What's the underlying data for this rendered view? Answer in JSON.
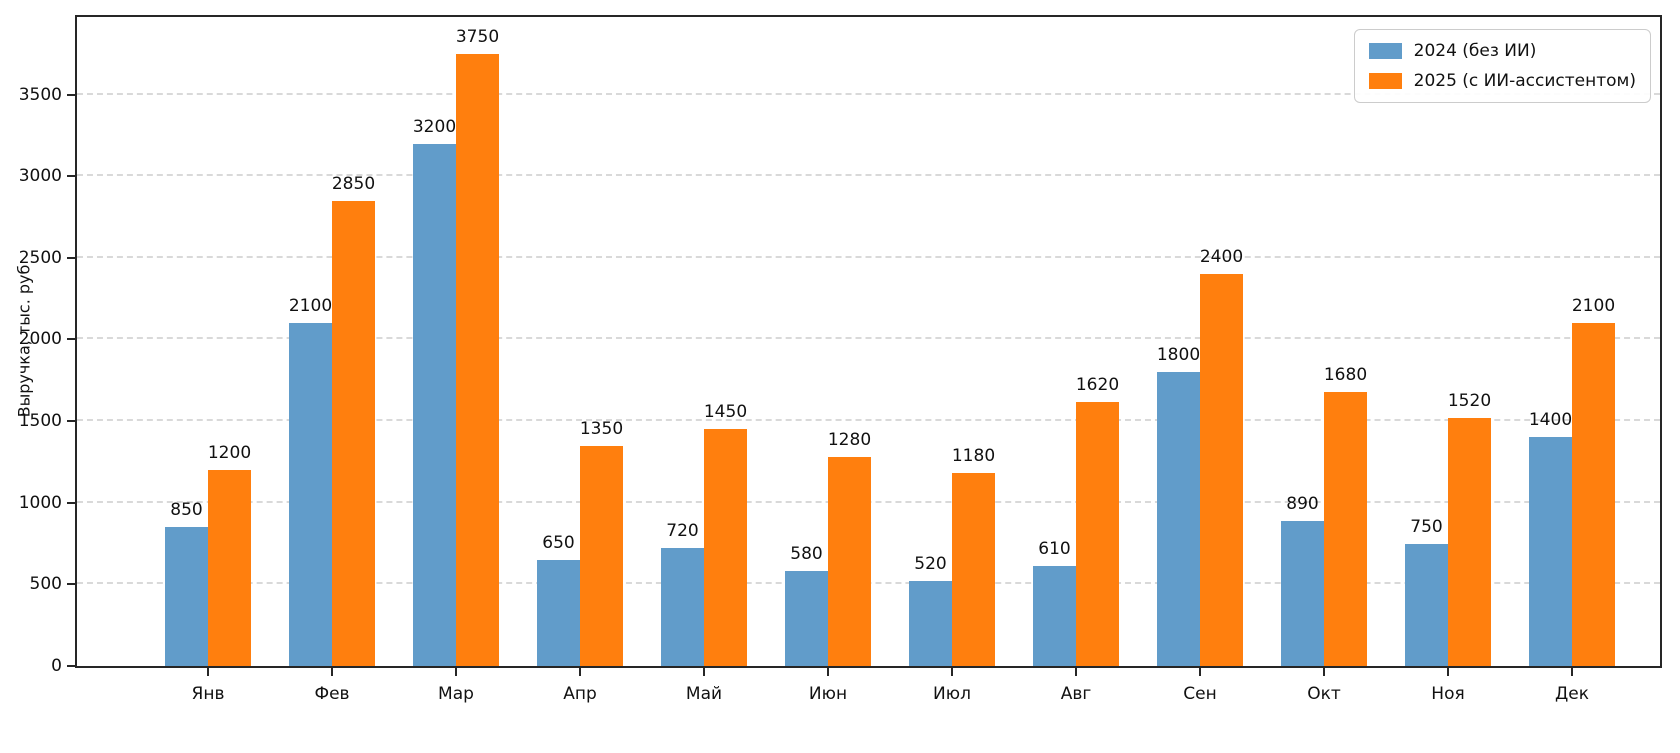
{
  "chart_data": {
    "type": "bar",
    "title": "",
    "xlabel": "",
    "ylabel": "Выручка, тыс. руб",
    "categories": [
      "Янв",
      "Фев",
      "Мар",
      "Апр",
      "Май",
      "Июн",
      "Июл",
      "Авг",
      "Сен",
      "Окт",
      "Ноя",
      "Дек"
    ],
    "series": [
      {
        "name": "2024 (без ИИ)",
        "color": "#619CCA",
        "values": [
          850,
          2100,
          3200,
          650,
          720,
          580,
          520,
          610,
          1800,
          890,
          750,
          1400
        ]
      },
      {
        "name": "2025 (с ИИ-ассистентом)",
        "color": "#FF7F0E",
        "values": [
          1200,
          2850,
          3750,
          1350,
          1450,
          1280,
          1180,
          1620,
          2400,
          1680,
          1520,
          2100
        ]
      }
    ],
    "yticks": [
      0,
      500,
      1000,
      1500,
      2000,
      2500,
      3000,
      3500
    ],
    "ylim": [
      0,
      3975
    ],
    "grid": "horizontal-dashed",
    "value_labels": true,
    "legend_position": "top-right",
    "colors": {
      "spine": "#262626",
      "grid": "#d9d9d9",
      "text": "#111111",
      "background": "#ffffff"
    }
  }
}
